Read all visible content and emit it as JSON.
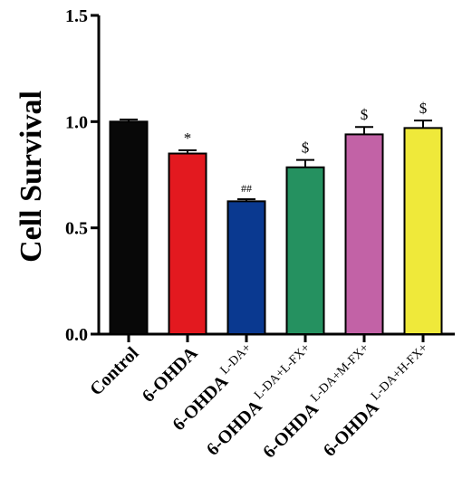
{
  "chart_data": {
    "type": "bar",
    "ylabel": "Cell Survival",
    "xlabel": "",
    "ylim": [
      0.0,
      1.5
    ],
    "yticks": [
      "0.0",
      "0.5",
      "1.0",
      "1.5"
    ],
    "grid": false,
    "categories": [
      {
        "main": "Control",
        "sup": ""
      },
      {
        "main": "6-OHDA",
        "sup": ""
      },
      {
        "main": "6-OHDA",
        "sup": "L-DA+"
      },
      {
        "main": "6-OHDA",
        "sup": "L-DA+L-FX+"
      },
      {
        "main": "6-OHDA",
        "sup": "L-DA+M-FX+"
      },
      {
        "main": "6-OHDA",
        "sup": "L-DA+H-FX+"
      }
    ],
    "values": [
      1.0,
      0.85,
      0.625,
      0.785,
      0.94,
      0.97
    ],
    "errors": [
      0.01,
      0.015,
      0.01,
      0.035,
      0.035,
      0.035
    ],
    "annotations": [
      "",
      "*",
      "##",
      "$",
      "$",
      "$"
    ],
    "colors": [
      "#080808",
      "#e3191f",
      "#0a3990",
      "#259160",
      "#c262a6",
      "#efe93a"
    ]
  }
}
